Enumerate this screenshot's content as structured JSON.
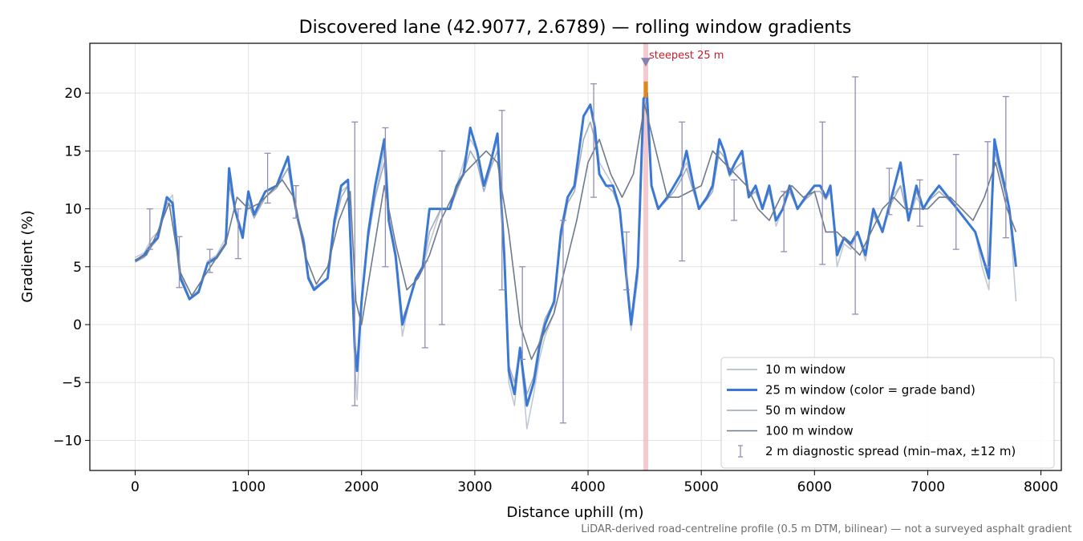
{
  "chart_data": {
    "type": "line",
    "title": "Discovered lane (42.9077, 2.6789) — rolling window gradients",
    "xlabel": "Distance uphill (m)",
    "ylabel": "Gradient (%)",
    "xlim": [
      -400,
      8180
    ],
    "ylim": [
      -12.6,
      24.3
    ],
    "xticks": [
      0,
      1000,
      2000,
      3000,
      4000,
      5000,
      6000,
      7000,
      8000
    ],
    "xtick_labels": [
      "0",
      "1000",
      "2000",
      "3000",
      "4000",
      "5000",
      "6000",
      "7000",
      "8000"
    ],
    "yticks": [
      -10,
      -5,
      0,
      5,
      10,
      15,
      20
    ],
    "ytick_labels": [
      "−10",
      "−5",
      "0",
      "5",
      "10",
      "15",
      "20"
    ],
    "grid": true,
    "legend_position": "lower-right",
    "series": [
      {
        "name": "10 m window",
        "color": "#aab5c4",
        "x": [
          0,
          80,
          150,
          200,
          280,
          330,
          400,
          480,
          560,
          640,
          720,
          800,
          830,
          880,
          950,
          1000,
          1050,
          1150,
          1250,
          1350,
          1400,
          1440,
          1490,
          1530,
          1580,
          1640,
          1700,
          1760,
          1820,
          1880,
          1940,
          1960,
          2000,
          2060,
          2120,
          2200,
          2240,
          2300,
          2360,
          2420,
          2480,
          2540,
          2600,
          2700,
          2780,
          2840,
          2900,
          2960,
          3020,
          3080,
          3140,
          3200,
          3260,
          3300,
          3350,
          3400,
          3460,
          3520,
          3570,
          3620,
          3700,
          3760,
          3820,
          3880,
          3960,
          4020,
          4060,
          4100,
          4160,
          4220,
          4280,
          4330,
          4380,
          4440,
          4490,
          4520,
          4560,
          4620,
          4700,
          4760,
          4820,
          4870,
          4930,
          4980,
          5050,
          5100,
          5160,
          5200,
          5250,
          5300,
          5360,
          5420,
          5480,
          5540,
          5600,
          5660,
          5720,
          5780,
          5850,
          5920,
          6000,
          6050,
          6100,
          6140,
          6200,
          6260,
          6320,
          6380,
          6450,
          6520,
          6600,
          6680,
          6760,
          6830,
          6900,
          6960,
          7020,
          7100,
          7180,
          7260,
          7340,
          7420,
          7480,
          7540,
          7590,
          7630,
          7680,
          7720,
          7780
        ],
        "y": [
          5.8,
          6.2,
          7.5,
          8,
          10.5,
          11.2,
          4.5,
          2.3,
          3,
          5.5,
          6,
          7.5,
          12.5,
          10,
          8,
          10.5,
          9.5,
          11,
          12,
          13.5,
          11,
          9,
          7.5,
          4,
          3,
          3.5,
          4,
          9,
          11.5,
          12,
          -3.5,
          -6.5,
          2,
          8,
          11,
          15,
          9,
          5.5,
          -1,
          2,
          4,
          5,
          7,
          10,
          10,
          12,
          14,
          16,
          15,
          12,
          14,
          16,
          6,
          -5,
          -7,
          -2,
          -9,
          -6,
          -3,
          -1,
          1,
          8,
          11,
          12,
          18,
          19,
          17,
          14,
          13,
          12,
          10,
          5,
          -0.5,
          4,
          19,
          20,
          12,
          10,
          11,
          12,
          13,
          14,
          12,
          10,
          11,
          12,
          16,
          15,
          13,
          14,
          15,
          11,
          12,
          10,
          12,
          8.5,
          10,
          12,
          10,
          11,
          12,
          12,
          11,
          12,
          5,
          7,
          6.5,
          8,
          5.5,
          10,
          8,
          11,
          12,
          9,
          11,
          10,
          11,
          12,
          11,
          10,
          9,
          8,
          5,
          3,
          16,
          14,
          12,
          10,
          2
        ]
      },
      {
        "name": "25 m window (color = grade band)",
        "color": "#3a78d4",
        "x": [
          0,
          80,
          150,
          200,
          280,
          330,
          400,
          480,
          560,
          640,
          720,
          800,
          830,
          880,
          950,
          1000,
          1050,
          1150,
          1250,
          1350,
          1400,
          1440,
          1490,
          1530,
          1580,
          1640,
          1700,
          1760,
          1820,
          1880,
          1940,
          1960,
          2000,
          2060,
          2120,
          2200,
          2240,
          2300,
          2360,
          2420,
          2480,
          2540,
          2600,
          2700,
          2780,
          2840,
          2900,
          2960,
          3020,
          3080,
          3140,
          3200,
          3260,
          3300,
          3350,
          3400,
          3460,
          3520,
          3570,
          3620,
          3700,
          3760,
          3820,
          3880,
          3960,
          4020,
          4060,
          4100,
          4160,
          4220,
          4280,
          4330,
          4380,
          4440,
          4490,
          4520,
          4560,
          4620,
          4700,
          4760,
          4820,
          4870,
          4930,
          4980,
          5050,
          5100,
          5160,
          5200,
          5250,
          5300,
          5360,
          5420,
          5480,
          5540,
          5600,
          5660,
          5720,
          5780,
          5850,
          5920,
          6000,
          6050,
          6100,
          6140,
          6200,
          6260,
          6320,
          6380,
          6450,
          6520,
          6600,
          6680,
          6760,
          6830,
          6900,
          6960,
          7020,
          7100,
          7180,
          7260,
          7340,
          7420,
          7480,
          7540,
          7590,
          7630,
          7680,
          7720,
          7780
        ],
        "y": [
          5.5,
          6,
          7,
          7.5,
          11,
          10.5,
          4,
          2.2,
          2.8,
          5.3,
          5.8,
          7,
          13.5,
          10,
          7.5,
          11.5,
          9.5,
          11.5,
          12,
          14.5,
          11,
          9,
          7,
          4,
          3,
          3.5,
          4,
          9,
          12,
          12.5,
          -2,
          -4,
          2,
          8,
          12,
          16,
          9,
          6,
          0,
          2,
          4,
          5,
          10,
          10,
          10,
          12,
          13,
          17,
          15,
          12,
          14,
          16.5,
          6,
          -4,
          -6,
          -2,
          -7,
          -5,
          -2,
          0,
          2,
          8,
          11,
          12,
          18,
          19,
          17,
          13,
          12,
          12,
          10,
          5,
          0,
          5,
          19.5,
          20,
          12,
          10,
          11,
          12,
          13,
          15,
          12,
          10,
          11,
          12,
          16,
          15,
          13,
          14,
          15,
          11,
          12,
          10,
          12,
          9,
          10,
          12,
          10,
          11,
          12,
          12,
          11,
          12,
          6,
          7.5,
          7,
          8,
          6,
          10,
          8,
          11,
          14,
          9,
          12,
          10,
          11,
          12,
          11,
          10,
          9,
          8,
          6,
          4,
          16,
          14,
          12,
          10,
          5
        ]
      },
      {
        "name": "50 m window",
        "color": "#98a5b6",
        "x": [
          0,
          80,
          150,
          200,
          280,
          330,
          400,
          480,
          560,
          640,
          720,
          800,
          830,
          880,
          950,
          1000,
          1050,
          1150,
          1250,
          1350,
          1400,
          1440,
          1490,
          1530,
          1580,
          1640,
          1700,
          1760,
          1820,
          1880,
          1940,
          1960,
          2000,
          2060,
          2120,
          2200,
          2240,
          2300,
          2360,
          2420,
          2480,
          2540,
          2600,
          2700,
          2780,
          2840,
          2900,
          2960,
          3020,
          3080,
          3140,
          3200,
          3260,
          3300,
          3350,
          3400,
          3460,
          3520,
          3570,
          3620,
          3700,
          3760,
          3820,
          3880,
          3960,
          4020,
          4060,
          4100,
          4160,
          4220,
          4280,
          4330,
          4380,
          4440,
          4490,
          4520,
          4560,
          4620,
          4700,
          4760,
          4820,
          4870,
          4930,
          4980,
          5050,
          5100,
          5160,
          5200,
          5250,
          5300,
          5360,
          5420,
          5480,
          5540,
          5600,
          5660,
          5720,
          5780,
          5850,
          5920,
          6000,
          6050,
          6100,
          6140,
          6200,
          6260,
          6320,
          6380,
          6450,
          6520,
          6600,
          6680,
          6760,
          6830,
          6900,
          6960,
          7020,
          7100,
          7180,
          7260,
          7340,
          7420,
          7480,
          7540,
          7590,
          7630,
          7680,
          7720,
          7780
        ],
        "y": [
          5.4,
          5.8,
          6.8,
          7.4,
          10.5,
          10.2,
          4.2,
          2.3,
          2.8,
          5.2,
          5.7,
          7,
          12,
          10,
          7.8,
          10.5,
          9.2,
          11,
          11.8,
          13.5,
          10.8,
          8.8,
          7,
          4.2,
          3.2,
          3.6,
          4,
          8.5,
          11,
          12,
          -1.5,
          -3.5,
          2.5,
          7.5,
          11,
          14,
          9,
          6,
          0.5,
          2,
          4,
          5,
          8,
          10,
          10,
          11.5,
          13,
          15,
          14,
          11.5,
          13.5,
          15,
          6.5,
          -3.5,
          -5,
          -2,
          -6,
          -4.5,
          -1.5,
          0.5,
          2,
          7.5,
          10.5,
          11.5,
          16,
          17.5,
          16,
          13,
          12,
          11.5,
          10,
          5,
          0.5,
          5,
          18.5,
          19.5,
          12,
          10,
          10.8,
          11.5,
          12.5,
          13.5,
          11.5,
          10,
          10.8,
          11.5,
          15,
          14.5,
          12.8,
          13.5,
          14,
          11,
          11.5,
          10,
          11.5,
          9,
          10,
          11.5,
          10,
          10.8,
          11.5,
          11.5,
          10.8,
          11.5,
          6.5,
          7.5,
          7,
          8,
          6.2,
          9.5,
          8,
          10.5,
          12,
          9,
          11.5,
          10,
          10.8,
          11.5,
          10.8,
          10,
          9,
          8,
          6,
          4.5,
          15,
          13.5,
          11.5,
          10,
          5.5
        ]
      },
      {
        "name": "100 m window",
        "color": "#6e7a8c",
        "x": [
          0,
          100,
          200,
          300,
          400,
          500,
          600,
          700,
          800,
          900,
          1000,
          1100,
          1200,
          1300,
          1400,
          1500,
          1600,
          1700,
          1800,
          1900,
          1950,
          2000,
          2100,
          2200,
          2300,
          2400,
          2500,
          2600,
          2700,
          2800,
          2900,
          3000,
          3100,
          3200,
          3300,
          3400,
          3500,
          3600,
          3700,
          3800,
          3900,
          4000,
          4100,
          4200,
          4300,
          4400,
          4500,
          4600,
          4700,
          4800,
          4900,
          5000,
          5100,
          5200,
          5300,
          5400,
          5500,
          5600,
          5700,
          5800,
          5900,
          6000,
          6100,
          6200,
          6300,
          6400,
          6500,
          6600,
          6700,
          6800,
          6900,
          7000,
          7100,
          7200,
          7300,
          7400,
          7500,
          7600,
          7700,
          7780
        ],
        "y": [
          5.6,
          6,
          8,
          10.5,
          4.5,
          2.5,
          4,
          5.5,
          7,
          11,
          10,
          10.5,
          11.5,
          12.5,
          11,
          6,
          3.5,
          5,
          9,
          11.5,
          2,
          0,
          6,
          12,
          7,
          3,
          4,
          6,
          9,
          11,
          13,
          14,
          15,
          14,
          8,
          0,
          -3,
          -1,
          1,
          5,
          9,
          14,
          16,
          13,
          11,
          13,
          19,
          15,
          11,
          11,
          11.5,
          12,
          15,
          14,
          13,
          12,
          10,
          9,
          11,
          12,
          11,
          11.5,
          8,
          8,
          7,
          6,
          8,
          10,
          11,
          10,
          10,
          10,
          11,
          11,
          10,
          9,
          11,
          14,
          10,
          8
        ]
      }
    ],
    "error_bars": {
      "name": "2 m diagnostic spread (min–max, ±12 m)",
      "color": "#8f8fb3",
      "x": [
        130,
        390,
        660,
        910,
        1170,
        1420,
        1940,
        2210,
        2560,
        2710,
        3240,
        3420,
        3780,
        4050,
        4340,
        4830,
        5290,
        5730,
        6070,
        6360,
        6660,
        6930,
        7250,
        7530,
        7690
      ],
      "low": [
        6.5,
        3.2,
        4.5,
        5.7,
        10.5,
        9.2,
        -7,
        5,
        -2,
        0,
        3,
        -3,
        -8.5,
        11,
        3,
        5.5,
        9,
        6.3,
        5.2,
        0.9,
        9.5,
        8.5,
        6.5,
        5,
        7.5
      ],
      "high": [
        10,
        7.6,
        6.5,
        10,
        14.8,
        12,
        17.5,
        17,
        5.5,
        15,
        18.5,
        5,
        9,
        20.8,
        8,
        17.5,
        12.5,
        11.5,
        17.5,
        21.4,
        13.5,
        12.5,
        14.7,
        15.8,
        19.7
      ]
    },
    "steepest": {
      "label": "steepest 25 m",
      "x": 4510,
      "y": 22.7,
      "band_color": "#f2b8bd",
      "marker_color": "#8a80b0",
      "highlight_color": "#d98a1f"
    },
    "footnote": "LiDAR-derived road-centreline profile (0.5 m DTM, bilinear) — not a surveyed asphalt gradient"
  }
}
